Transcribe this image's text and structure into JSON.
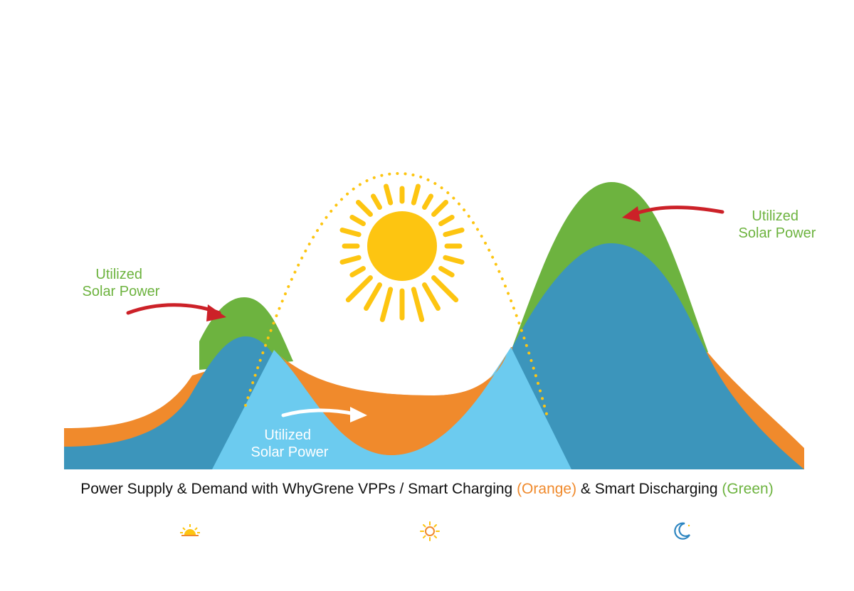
{
  "labels": {
    "left": [
      "Utilized",
      "Solar Power"
    ],
    "center": [
      "Utilized",
      "Solar Power"
    ],
    "right": [
      "Utilized",
      "Solar Power"
    ]
  },
  "caption": {
    "main": "Power Supply & Demand with WhyGrene VPPs / Smart Charging ",
    "orange": "(Orange)",
    "middle": " & Smart Discharging ",
    "green": "(Green)"
  },
  "colors": {
    "demand_dark_blue": "#3c95bb",
    "solar_light_blue": "#6ccbef",
    "smart_charging_orange": "#f08a2c",
    "smart_discharging_green": "#6db33f",
    "sun_yellow": "#fdc511",
    "arrow_red": "#cc2128",
    "moon_blue": "#2e86c1"
  },
  "icons": {
    "morning": "sunrise-icon",
    "midday": "sun-icon",
    "night": "moon-icon",
    "center": "sun-icon"
  }
}
